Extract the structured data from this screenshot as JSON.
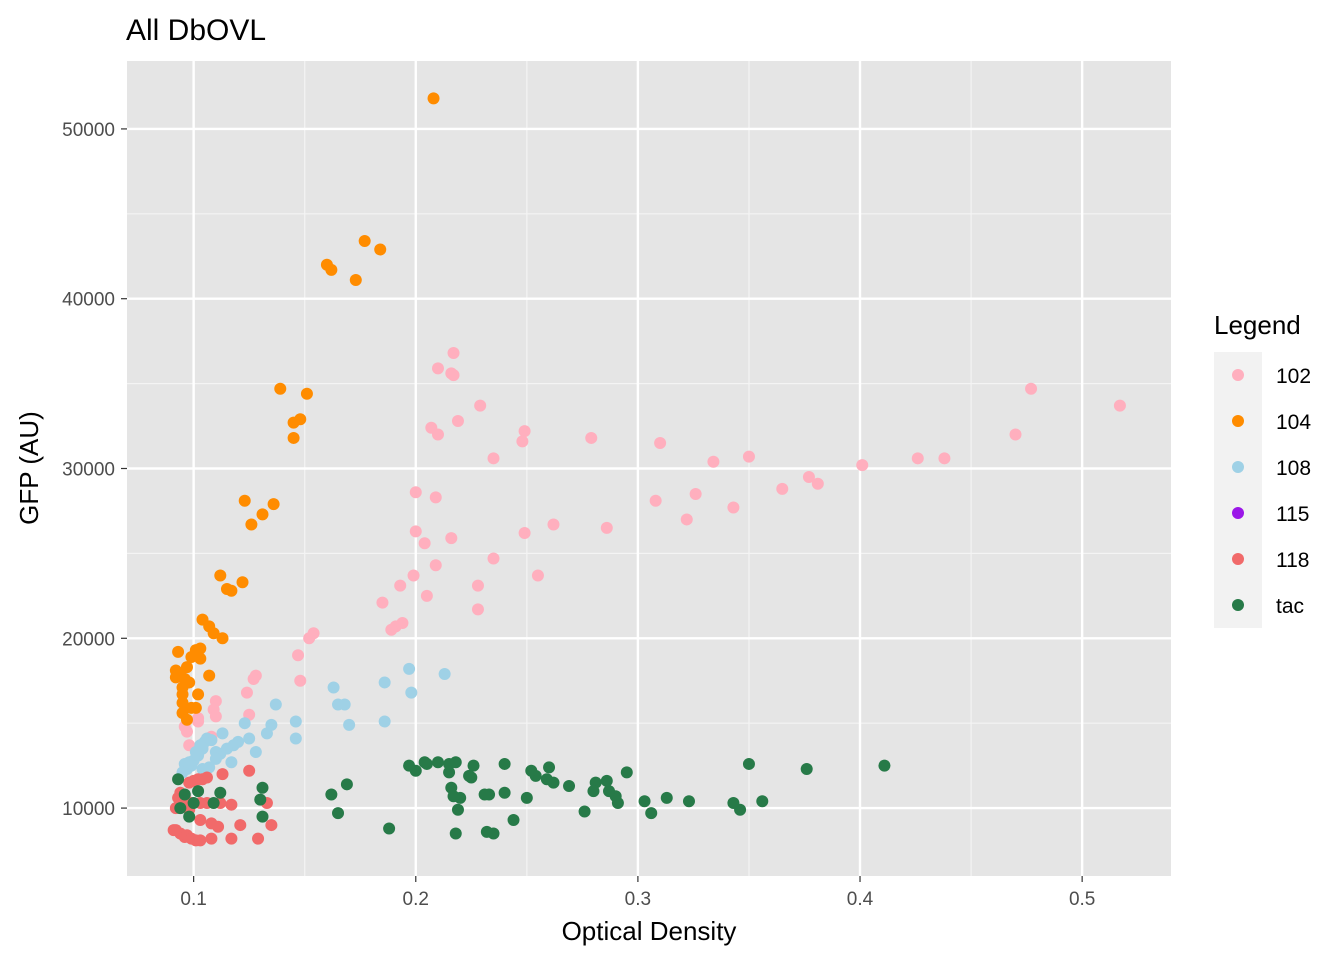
{
  "chart_data": {
    "type": "scatter",
    "title": "All DbOVL",
    "xlabel": "Optical Density",
    "ylabel": "GFP (AU)",
    "xlim": [
      0.07,
      0.54
    ],
    "ylim": [
      6000,
      54000
    ],
    "x_ticks": [
      0.1,
      0.2,
      0.3,
      0.4,
      0.5
    ],
    "x_tick_labels": [
      "0.1",
      "0.2",
      "0.3",
      "0.4",
      "0.5"
    ],
    "y_ticks": [
      10000,
      20000,
      30000,
      40000,
      50000
    ],
    "y_tick_labels": [
      "10000",
      "20000",
      "30000",
      "40000",
      "50000"
    ],
    "grid": true,
    "background": "#e5e5e5",
    "legend": {
      "title": "Legend",
      "position": "right"
    },
    "series": [
      {
        "name": "102",
        "color": "#ffafbe",
        "points": [
          [
            0.477,
            34700
          ],
          [
            0.517,
            33700
          ],
          [
            0.47,
            32000
          ],
          [
            0.426,
            30600
          ],
          [
            0.438,
            30600
          ],
          [
            0.401,
            30200
          ],
          [
            0.377,
            29500
          ],
          [
            0.381,
            29100
          ],
          [
            0.365,
            28800
          ],
          [
            0.35,
            30700
          ],
          [
            0.334,
            30400
          ],
          [
            0.343,
            27700
          ],
          [
            0.326,
            28500
          ],
          [
            0.322,
            27000
          ],
          [
            0.31,
            31500
          ],
          [
            0.308,
            28100
          ],
          [
            0.286,
            26500
          ],
          [
            0.279,
            31800
          ],
          [
            0.262,
            26700
          ],
          [
            0.255,
            23700
          ],
          [
            0.249,
            32200
          ],
          [
            0.248,
            31600
          ],
          [
            0.249,
            26200
          ],
          [
            0.235,
            30600
          ],
          [
            0.235,
            24700
          ],
          [
            0.229,
            33700
          ],
          [
            0.228,
            23100
          ],
          [
            0.228,
            21700
          ],
          [
            0.219,
            32800
          ],
          [
            0.217,
            36800
          ],
          [
            0.216,
            35600
          ],
          [
            0.217,
            35500
          ],
          [
            0.216,
            25900
          ],
          [
            0.21,
            35900
          ],
          [
            0.207,
            32400
          ],
          [
            0.21,
            32000
          ],
          [
            0.209,
            28300
          ],
          [
            0.209,
            24300
          ],
          [
            0.2,
            28600
          ],
          [
            0.2,
            26300
          ],
          [
            0.199,
            23700
          ],
          [
            0.204,
            25600
          ],
          [
            0.205,
            22500
          ],
          [
            0.193,
            23100
          ],
          [
            0.194,
            20900
          ],
          [
            0.191,
            20700
          ],
          [
            0.189,
            20500
          ],
          [
            0.185,
            22100
          ],
          [
            0.154,
            20300
          ],
          [
            0.152,
            20000
          ],
          [
            0.147,
            19000
          ],
          [
            0.148,
            17500
          ],
          [
            0.128,
            17800
          ],
          [
            0.127,
            17600
          ],
          [
            0.124,
            16800
          ],
          [
            0.125,
            15500
          ],
          [
            0.11,
            16300
          ],
          [
            0.109,
            15800
          ],
          [
            0.11,
            15400
          ],
          [
            0.102,
            15300
          ],
          [
            0.102,
            15100
          ],
          [
            0.096,
            14800
          ],
          [
            0.097,
            14500
          ],
          [
            0.098,
            13700
          ],
          [
            0.108,
            14200
          ]
        ]
      },
      {
        "name": "104",
        "color": "#ff8c00",
        "points": [
          [
            0.208,
            51800
          ],
          [
            0.177,
            43400
          ],
          [
            0.184,
            42900
          ],
          [
            0.16,
            42000
          ],
          [
            0.162,
            41700
          ],
          [
            0.173,
            41100
          ],
          [
            0.139,
            34700
          ],
          [
            0.151,
            34400
          ],
          [
            0.148,
            32900
          ],
          [
            0.145,
            32700
          ],
          [
            0.145,
            31800
          ],
          [
            0.123,
            28100
          ],
          [
            0.136,
            27900
          ],
          [
            0.131,
            27300
          ],
          [
            0.126,
            26700
          ],
          [
            0.112,
            23700
          ],
          [
            0.122,
            23300
          ],
          [
            0.115,
            22900
          ],
          [
            0.117,
            22800
          ],
          [
            0.104,
            21100
          ],
          [
            0.107,
            20700
          ],
          [
            0.109,
            20300
          ],
          [
            0.113,
            20000
          ],
          [
            0.093,
            19200
          ],
          [
            0.101,
            19300
          ],
          [
            0.103,
            19400
          ],
          [
            0.099,
            18900
          ],
          [
            0.103,
            18800
          ],
          [
            0.097,
            18300
          ],
          [
            0.092,
            18100
          ],
          [
            0.094,
            17900
          ],
          [
            0.092,
            17700
          ],
          [
            0.096,
            17600
          ],
          [
            0.098,
            17400
          ],
          [
            0.095,
            17100
          ],
          [
            0.095,
            16700
          ],
          [
            0.102,
            16700
          ],
          [
            0.107,
            17800
          ],
          [
            0.095,
            16200
          ],
          [
            0.099,
            15900
          ],
          [
            0.101,
            15900
          ],
          [
            0.095,
            15600
          ],
          [
            0.097,
            15200
          ]
        ]
      },
      {
        "name": "108",
        "color": "#9fd1e6",
        "points": [
          [
            0.213,
            17900
          ],
          [
            0.197,
            18200
          ],
          [
            0.198,
            16800
          ],
          [
            0.186,
            17400
          ],
          [
            0.186,
            15100
          ],
          [
            0.163,
            17100
          ],
          [
            0.165,
            16100
          ],
          [
            0.168,
            16100
          ],
          [
            0.17,
            14900
          ],
          [
            0.146,
            15100
          ],
          [
            0.146,
            14100
          ],
          [
            0.137,
            16100
          ],
          [
            0.135,
            14900
          ],
          [
            0.133,
            14400
          ],
          [
            0.128,
            13300
          ],
          [
            0.125,
            14100
          ],
          [
            0.123,
            15000
          ],
          [
            0.12,
            13900
          ],
          [
            0.118,
            13700
          ],
          [
            0.117,
            12700
          ],
          [
            0.115,
            13500
          ],
          [
            0.113,
            14400
          ],
          [
            0.112,
            13200
          ],
          [
            0.11,
            13300
          ],
          [
            0.108,
            14000
          ],
          [
            0.106,
            14100
          ],
          [
            0.105,
            13900
          ],
          [
            0.104,
            13500
          ],
          [
            0.103,
            13700
          ],
          [
            0.102,
            13100
          ],
          [
            0.101,
            13300
          ],
          [
            0.1,
            12800
          ],
          [
            0.099,
            12500
          ],
          [
            0.098,
            12700
          ],
          [
            0.097,
            12300
          ],
          [
            0.096,
            12600
          ],
          [
            0.095,
            12100
          ],
          [
            0.104,
            12300
          ],
          [
            0.107,
            12400
          ],
          [
            0.11,
            12900
          ]
        ]
      },
      {
        "name": "115",
        "color": "#9b17e8",
        "points": []
      },
      {
        "name": "118",
        "color": "#f16a6a",
        "points": [
          [
            0.125,
            12200
          ],
          [
            0.113,
            12000
          ],
          [
            0.106,
            11800
          ],
          [
            0.104,
            11700
          ],
          [
            0.102,
            11700
          ],
          [
            0.1,
            11600
          ],
          [
            0.098,
            11500
          ],
          [
            0.094,
            10900
          ],
          [
            0.093,
            10600
          ],
          [
            0.096,
            10700
          ],
          [
            0.099,
            10300
          ],
          [
            0.103,
            10300
          ],
          [
            0.106,
            10300
          ],
          [
            0.112,
            10300
          ],
          [
            0.117,
            10200
          ],
          [
            0.133,
            10300
          ],
          [
            0.095,
            10100
          ],
          [
            0.092,
            10000
          ],
          [
            0.098,
            9900
          ],
          [
            0.103,
            9300
          ],
          [
            0.108,
            9100
          ],
          [
            0.111,
            8900
          ],
          [
            0.121,
            9000
          ],
          [
            0.135,
            9000
          ],
          [
            0.091,
            8700
          ],
          [
            0.092,
            8700
          ],
          [
            0.094,
            8500
          ],
          [
            0.096,
            8300
          ],
          [
            0.097,
            8400
          ],
          [
            0.099,
            8200
          ],
          [
            0.101,
            8100
          ],
          [
            0.103,
            8100
          ],
          [
            0.108,
            8200
          ],
          [
            0.117,
            8200
          ],
          [
            0.129,
            8200
          ]
        ]
      },
      {
        "name": "tac",
        "color": "#277a48",
        "points": [
          [
            0.411,
            12500
          ],
          [
            0.376,
            12300
          ],
          [
            0.35,
            12600
          ],
          [
            0.356,
            10400
          ],
          [
            0.346,
            9900
          ],
          [
            0.343,
            10300
          ],
          [
            0.323,
            10400
          ],
          [
            0.306,
            9700
          ],
          [
            0.313,
            10600
          ],
          [
            0.303,
            10400
          ],
          [
            0.295,
            12100
          ],
          [
            0.291,
            10300
          ],
          [
            0.29,
            10700
          ],
          [
            0.287,
            11000
          ],
          [
            0.286,
            11600
          ],
          [
            0.281,
            11500
          ],
          [
            0.28,
            11000
          ],
          [
            0.276,
            9800
          ],
          [
            0.269,
            11300
          ],
          [
            0.262,
            11500
          ],
          [
            0.259,
            11700
          ],
          [
            0.26,
            12400
          ],
          [
            0.254,
            11900
          ],
          [
            0.252,
            12200
          ],
          [
            0.25,
            10600
          ],
          [
            0.244,
            9300
          ],
          [
            0.24,
            12600
          ],
          [
            0.24,
            10900
          ],
          [
            0.235,
            8500
          ],
          [
            0.233,
            10800
          ],
          [
            0.232,
            8600
          ],
          [
            0.231,
            10800
          ],
          [
            0.226,
            12500
          ],
          [
            0.225,
            11800
          ],
          [
            0.224,
            11900
          ],
          [
            0.22,
            10600
          ],
          [
            0.219,
            9900
          ],
          [
            0.218,
            8500
          ],
          [
            0.218,
            12700
          ],
          [
            0.217,
            10700
          ],
          [
            0.216,
            11200
          ],
          [
            0.215,
            12100
          ],
          [
            0.215,
            12600
          ],
          [
            0.21,
            12700
          ],
          [
            0.205,
            12600
          ],
          [
            0.204,
            12700
          ],
          [
            0.2,
            12200
          ],
          [
            0.197,
            12500
          ],
          [
            0.188,
            8800
          ],
          [
            0.169,
            11400
          ],
          [
            0.165,
            9700
          ],
          [
            0.162,
            10800
          ],
          [
            0.131,
            11200
          ],
          [
            0.131,
            9500
          ],
          [
            0.13,
            10500
          ],
          [
            0.112,
            10900
          ],
          [
            0.109,
            10300
          ],
          [
            0.102,
            11000
          ],
          [
            0.1,
            10300
          ],
          [
            0.098,
            9500
          ],
          [
            0.096,
            10800
          ],
          [
            0.094,
            10000
          ],
          [
            0.093,
            11700
          ]
        ]
      }
    ]
  }
}
